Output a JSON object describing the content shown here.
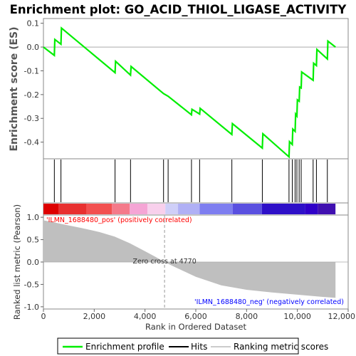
{
  "chart_data": {
    "type": "line",
    "title": "Enrichment plot: GO_ACID_THIOL_LIGASE_ACTIVITY",
    "es_panel": {
      "ylabel": "Enrichment score (ES)",
      "yticks": [
        "0.1",
        "0.0",
        "-0.1",
        "-0.2",
        "-0.3",
        "-0.4"
      ],
      "ylim": [
        -0.47,
        0.12
      ],
      "series": [
        {
          "name": "Enrichment profile",
          "color": "#00ee00",
          "x": [
            0,
            430,
            450,
            690,
            710,
            2820,
            2840,
            3430,
            3450,
            4730,
            4910,
            5830,
            5850,
            6150,
            6170,
            7420,
            7440,
            8620,
            8640,
            9670,
            9690,
            9800,
            9820,
            9910,
            9930,
            9980,
            10000,
            10070,
            10090,
            10150,
            10170,
            10620,
            10640,
            10750,
            10770,
            11180,
            11200,
            11500
          ],
          "y": [
            0.0,
            -0.035,
            0.032,
            0.012,
            0.08,
            -0.108,
            -0.06,
            -0.118,
            -0.082,
            -0.196,
            -0.207,
            -0.285,
            -0.262,
            -0.282,
            -0.258,
            -0.368,
            -0.322,
            -0.425,
            -0.365,
            -0.462,
            -0.398,
            -0.41,
            -0.345,
            -0.355,
            -0.282,
            -0.29,
            -0.222,
            -0.228,
            -0.168,
            -0.172,
            -0.105,
            -0.14,
            -0.068,
            -0.078,
            -0.01,
            -0.05,
            0.025,
            0.0
          ]
        }
      ],
      "hits": [
        430,
        690,
        2820,
        3430,
        4730,
        4910,
        5830,
        6150,
        7420,
        8620,
        9670,
        9800,
        9910,
        9980,
        10070,
        10150,
        10620,
        10750,
        11180
      ]
    },
    "colorbar": {
      "colors": [
        "#dd0000",
        "#e83030",
        "#f25050",
        "#f47a8a",
        "#f5a5d5",
        "#f8d0ec",
        "#cfcff8",
        "#b0b0f5",
        "#7e7ef0",
        "#5a50e0",
        "#2e10c8",
        "#3000c8",
        "#4010b0"
      ],
      "stops": [
        0,
        600,
        1700,
        2700,
        3400,
        4100,
        4800,
        5300,
        6150,
        7450,
        8600,
        10300,
        10800,
        11500
      ]
    },
    "metric_panel": {
      "ylabel": "Ranked list metric (Pearson)",
      "yticks": [
        "1.0",
        "0.5",
        "0.0",
        "-0.5",
        "-1.0"
      ],
      "ylim": [
        -1.05,
        1.05
      ],
      "x": [
        0,
        300,
        800,
        1500,
        2200,
        2800,
        3400,
        4000,
        4400,
        4770,
        5200,
        6000,
        7000,
        8000,
        9000,
        10000,
        11000,
        11500
      ],
      "y": [
        0.93,
        0.9,
        0.84,
        0.76,
        0.67,
        0.57,
        0.42,
        0.24,
        0.12,
        0.0,
        -0.12,
        -0.33,
        -0.52,
        -0.62,
        -0.68,
        -0.73,
        -0.78,
        -0.8
      ],
      "zero_cross_label": "Zero cross at 4770",
      "zero_cross_x": 4770,
      "pos_label": "'ILMN_1688480_pos' (positively correlated)",
      "neg_label": "'ILMN_1688480_neg' (negatively correlated)",
      "pos_color": "#ff0000",
      "neg_color": "#0000ff"
    },
    "xaxis": {
      "xlabel": "Rank in Ordered Dataset",
      "xlim": [
        0,
        12000
      ],
      "xticks": [
        0,
        2000,
        4000,
        6000,
        8000,
        10000,
        12000
      ],
      "xtick_labels": [
        "0",
        "2,000",
        "4,000",
        "6,000",
        "8,000",
        "10,000",
        "12,000"
      ],
      "n_genes": 11500
    },
    "legend": {
      "placement": "bottom",
      "items": [
        {
          "label": "Enrichment profile",
          "color": "#00ee00"
        },
        {
          "label": "Hits",
          "color": "#000000"
        },
        {
          "label": "Ranking metric scores",
          "color": "#cccccc"
        }
      ]
    }
  }
}
